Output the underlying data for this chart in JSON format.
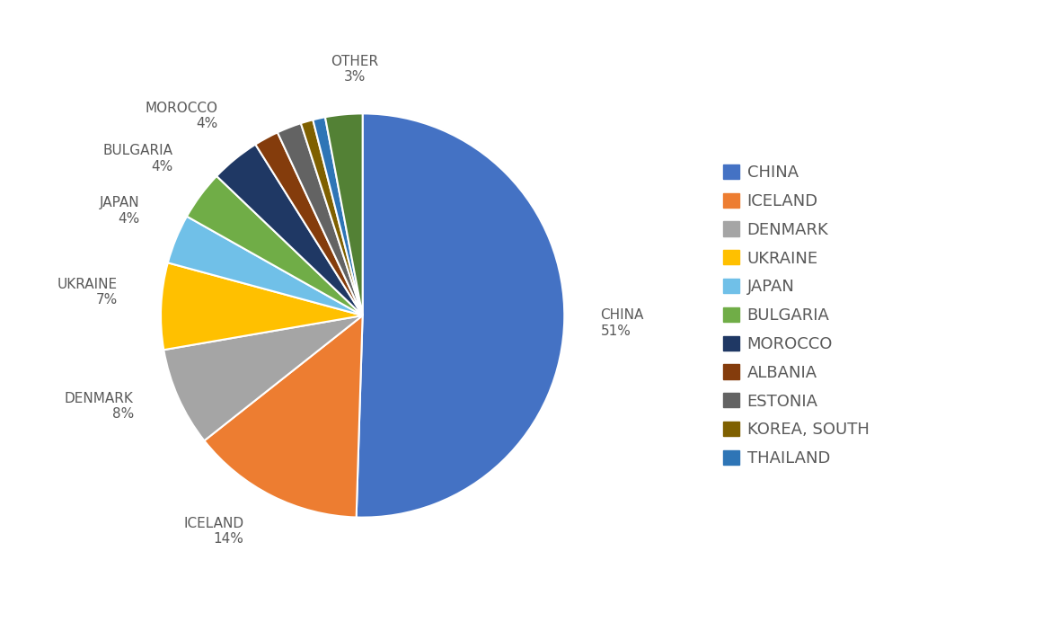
{
  "labels": [
    "CHINA",
    "ICELAND",
    "DENMARK",
    "UKRAINE",
    "JAPAN",
    "BULGARIA",
    "MOROCCO",
    "ALBANIA",
    "ESTONIA",
    "KOREA, SOUTH",
    "THAILAND",
    "OTHER"
  ],
  "values": [
    51,
    14,
    8,
    7,
    4,
    4,
    4,
    2,
    2,
    1,
    1,
    3
  ],
  "colors": [
    "#4472C4",
    "#ED7D31",
    "#A5A5A5",
    "#FFC000",
    "#70C0E8",
    "#70AD47",
    "#1F3864",
    "#843C0C",
    "#636363",
    "#7F6000",
    "#2E75B6",
    "#538135"
  ],
  "legend_labels": [
    "CHINA",
    "ICELAND",
    "DENMARK",
    "UKRAINE",
    "JAPAN",
    "BULGARIA",
    "MOROCCO",
    "ALBANIA",
    "ESTONIA",
    "KOREA, SOUTH",
    "THAILAND"
  ],
  "show_labels": [
    "CHINA",
    "ICELAND",
    "DENMARK",
    "UKRAINE",
    "JAPAN",
    "BULGARIA",
    "MOROCCO",
    "OTHER"
  ],
  "background_color": "#FFFFFF",
  "label_fontsize": 11,
  "legend_fontsize": 13,
  "label_color": "#595959"
}
